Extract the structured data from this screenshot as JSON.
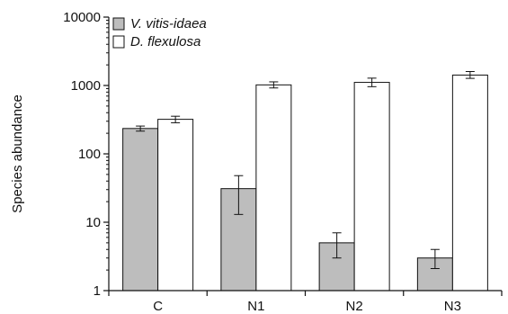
{
  "chart_data": {
    "type": "bar",
    "title": "",
    "xlabel": "",
    "ylabel": "Species abundance",
    "yscale": "log",
    "ylim": [
      1,
      10000
    ],
    "yticks": [
      1,
      10,
      100,
      1000,
      10000
    ],
    "ytick_labels": [
      "1",
      "10",
      "100",
      "1000",
      "10000"
    ],
    "categories": [
      "C",
      "N1",
      "N2",
      "N3"
    ],
    "grid": false,
    "legend_position": "top-left",
    "error_bars": true,
    "series": [
      {
        "name": "V. vitis-idaea",
        "color": "#bdbdbd",
        "values": [
          235,
          31,
          5,
          3
        ],
        "err_low": [
          215,
          13,
          3,
          2.1
        ],
        "err_high": [
          255,
          48,
          7,
          4
        ]
      },
      {
        "name": "D. flexulosa",
        "color": "#ffffff",
        "values": [
          320,
          1020,
          1110,
          1420
        ],
        "err_low": [
          285,
          920,
          960,
          1270
        ],
        "err_high": [
          355,
          1130,
          1280,
          1600
        ]
      }
    ]
  }
}
